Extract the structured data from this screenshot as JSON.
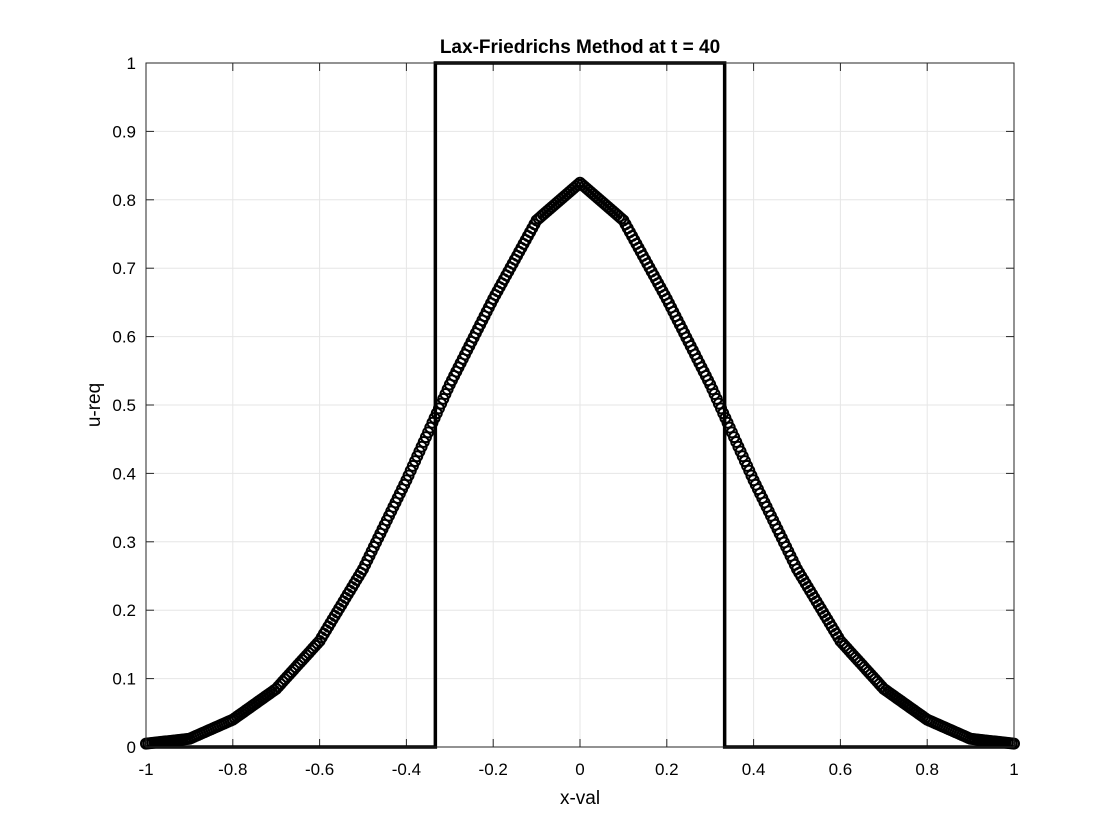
{
  "chart_data": {
    "type": "line",
    "title": "Lax-Friedrichs Method at t = 40",
    "xlabel": "x-val",
    "ylabel": "u-req",
    "xlim": [
      -1,
      1
    ],
    "ylim": [
      0,
      1
    ],
    "grid": true,
    "legend": "none",
    "xticks": [
      -1,
      -0.8,
      -0.6,
      -0.4,
      -0.2,
      0,
      0.2,
      0.4,
      0.6,
      0.8,
      1
    ],
    "xtick_labels": [
      "-1",
      "-0.8",
      "-0.6",
      "-0.4",
      "-0.2",
      "0",
      "0.2",
      "0.4",
      "0.6",
      "0.8",
      "1"
    ],
    "yticks": [
      0,
      0.1,
      0.2,
      0.3,
      0.4,
      0.5,
      0.6,
      0.7,
      0.8,
      0.9,
      1
    ],
    "ytick_labels": [
      "0",
      "0.1",
      "0.2",
      "0.3",
      "0.4",
      "0.5",
      "0.6",
      "0.7",
      "0.8",
      "0.9",
      "1"
    ],
    "series": [
      {
        "style": "solid-line",
        "color": "#000000",
        "x": [
          -1,
          -0.3333,
          -0.3333,
          0.3333,
          0.3333,
          1
        ],
        "y": [
          0,
          0,
          1,
          1,
          0,
          0
        ]
      },
      {
        "style": "circle-markers",
        "color": "#000000",
        "x": [
          -1,
          -0.9,
          -0.8,
          -0.7,
          -0.6,
          -0.5,
          -0.4,
          -0.35,
          -0.3,
          -0.2,
          -0.1,
          0,
          0.1,
          0.2,
          0.3,
          0.35,
          0.4,
          0.5,
          0.6,
          0.7,
          0.8,
          0.9,
          1
        ],
        "y": [
          0.005,
          0.012,
          0.04,
          0.085,
          0.155,
          0.26,
          0.39,
          0.46,
          0.53,
          0.655,
          0.77,
          0.825,
          0.77,
          0.655,
          0.53,
          0.46,
          0.39,
          0.26,
          0.155,
          0.085,
          0.04,
          0.012,
          0.005
        ]
      }
    ]
  }
}
